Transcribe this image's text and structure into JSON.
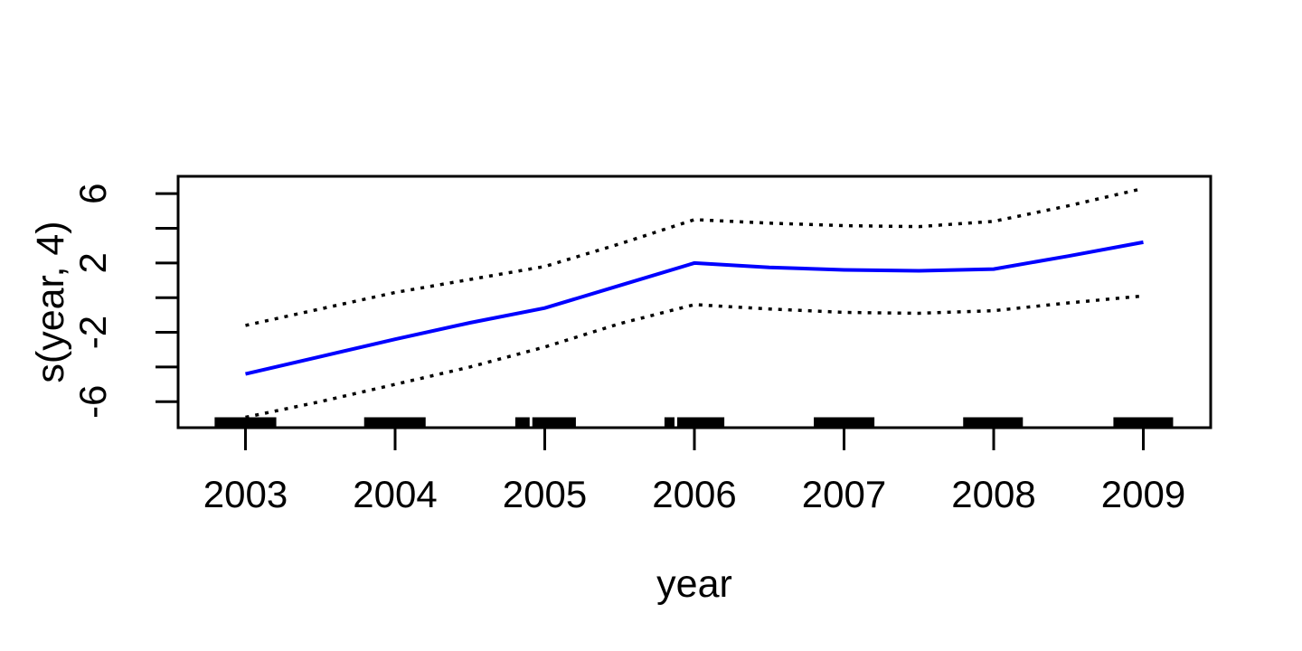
{
  "figure": {
    "background_color": "#ffffff",
    "axis_color": "#000000",
    "fit_line_color": "#0000ff",
    "band_line_color": "#000000",
    "rug_color": "#000000"
  },
  "chart_data": {
    "type": "line",
    "title": "",
    "xlabel": "year",
    "ylabel": "s(year, 4)",
    "xlim": [
      2002.55,
      2009.45
    ],
    "ylim": [
      -7.5,
      7.0
    ],
    "grid": false,
    "legend": null,
    "x_ticks": [
      {
        "value": 2003,
        "label": "2003"
      },
      {
        "value": 2004,
        "label": "2004"
      },
      {
        "value": 2005,
        "label": "2005"
      },
      {
        "value": 2006,
        "label": "2006"
      },
      {
        "value": 2007,
        "label": "2007"
      },
      {
        "value": 2008,
        "label": "2008"
      },
      {
        "value": 2009,
        "label": "2009"
      }
    ],
    "y_ticks": [
      {
        "value": 6,
        "label": "6"
      },
      {
        "value": 4,
        "label": ""
      },
      {
        "value": 2,
        "label": "2"
      },
      {
        "value": 0,
        "label": ""
      },
      {
        "value": -2,
        "label": "-2"
      },
      {
        "value": -4,
        "label": ""
      },
      {
        "value": -6,
        "label": "-6"
      }
    ],
    "x": [
      2003,
      2003.5,
      2004,
      2004.5,
      2005,
      2005.5,
      2006,
      2006.5,
      2007,
      2007.5,
      2008,
      2008.5,
      2009
    ],
    "series": [
      {
        "name": "fit",
        "style": "solid",
        "color": "#0000ff",
        "values": [
          -4.4,
          -3.4,
          -2.4,
          -1.45,
          -0.6,
          0.7,
          2.0,
          1.75,
          1.6,
          1.55,
          1.65,
          2.4,
          3.2
        ]
      },
      {
        "name": "upper-ci",
        "style": "dotted",
        "color": "#000000",
        "values": [
          -1.6,
          -0.65,
          0.3,
          1.05,
          1.8,
          3.1,
          4.5,
          4.3,
          4.15,
          4.1,
          4.4,
          5.3,
          6.3
        ]
      },
      {
        "name": "lower-ci",
        "style": "dotted",
        "color": "#000000",
        "values": [
          -6.9,
          -6.0,
          -5.0,
          -4.0,
          -2.85,
          -1.5,
          -0.4,
          -0.65,
          -0.85,
          -0.9,
          -0.75,
          -0.3,
          0.1
        ]
      }
    ],
    "rug_segments": [
      [
        2002.794,
        2003.206
      ],
      [
        2003.793,
        2004.204
      ],
      [
        2004.803,
        2004.899
      ],
      [
        2004.917,
        2005.208
      ],
      [
        2005.8,
        2005.867
      ],
      [
        2005.885,
        2006.2
      ],
      [
        2006.798,
        2007.203
      ],
      [
        2007.796,
        2008.195
      ],
      [
        2008.8,
        2009.199
      ]
    ]
  }
}
